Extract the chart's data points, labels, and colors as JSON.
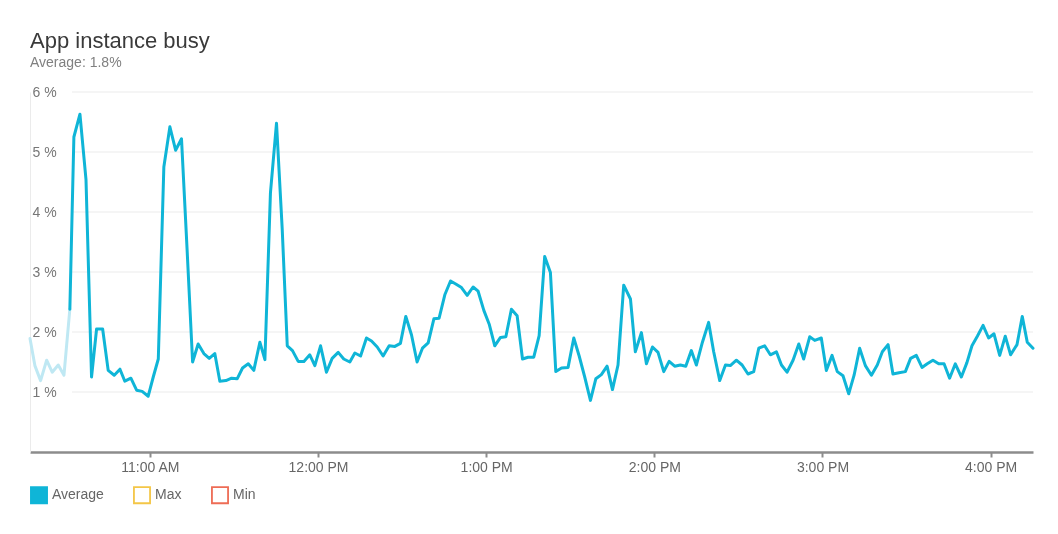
{
  "chart_data": {
    "type": "line",
    "title": "App instance busy",
    "subtitle": "Average: 1.8%",
    "xlim": [
      10.287,
      16.252
    ],
    "xticks": [
      {
        "value": 11,
        "label": "11:00 AM"
      },
      {
        "value": 12,
        "label": "12:00 PM"
      },
      {
        "value": 13,
        "label": "1:00 PM"
      },
      {
        "value": 14,
        "label": "2:00 PM"
      },
      {
        "value": 15,
        "label": "3:00 PM"
      },
      {
        "value": 16,
        "label": "4:00 PM"
      }
    ],
    "ylim": [
      0,
      6
    ],
    "yticks": [
      {
        "value": 1,
        "label": "1 %"
      },
      {
        "value": 2,
        "label": "2 %"
      },
      {
        "value": 3,
        "label": "3 %"
      },
      {
        "value": 4,
        "label": "4 %"
      },
      {
        "value": 5,
        "label": "5 %"
      },
      {
        "value": 6,
        "label": "6 %"
      }
    ],
    "grid": "y",
    "legend": "bottom left",
    "series": [
      {
        "color": "#bfe8f3",
        "x": [
          10.287,
          10.316,
          10.35,
          10.386,
          10.419,
          10.455,
          10.489,
          10.524
        ],
        "values": [
          1.89,
          1.44,
          1.19,
          1.53,
          1.33,
          1.45,
          1.28,
          2.38
        ]
      },
      {
        "name": "Average",
        "color": "#0fb5d7",
        "x": [
          10.524,
          10.548,
          10.584,
          10.62,
          10.653,
          10.683,
          10.719,
          10.752,
          10.788,
          10.822,
          10.851,
          10.887,
          10.921,
          10.954,
          10.99,
          11.02,
          11.05,
          11.083,
          11.119,
          11.153,
          11.188,
          11.222,
          11.254,
          11.287,
          11.321,
          11.353,
          11.386,
          11.416,
          11.452,
          11.486,
          11.519,
          11.551,
          11.585,
          11.618,
          11.654,
          11.684,
          11.717,
          11.753,
          11.787,
          11.817,
          11.848,
          11.882,
          11.916,
          11.951,
          11.981,
          12.015,
          12.05,
          12.084,
          12.12,
          12.153,
          12.189,
          12.219,
          12.253,
          12.288,
          12.318,
          12.352,
          12.387,
          12.423,
          12.457,
          12.49,
          12.522,
          12.556,
          12.589,
          12.621,
          12.655,
          12.689,
          12.72,
          12.754,
          12.788,
          12.819,
          12.853,
          12.887,
          12.922,
          12.952,
          12.986,
          13.018,
          13.051,
          13.085,
          13.117,
          13.15,
          13.184,
          13.216,
          13.249,
          13.283,
          13.315,
          13.348,
          13.382,
          13.414,
          13.448,
          13.487,
          13.521,
          13.553,
          13.586,
          13.62,
          13.652,
          13.685,
          13.719,
          13.751,
          13.784,
          13.818,
          13.858,
          13.887,
          13.923,
          13.953,
          13.989,
          14.022,
          14.056,
          14.088,
          14.121,
          14.155,
          14.187,
          14.22,
          14.25,
          14.286,
          14.323,
          14.353,
          14.389,
          14.423,
          14.452,
          14.488,
          14.522,
          14.557,
          14.591,
          14.621,
          14.656,
          14.69,
          14.726,
          14.756,
          14.789,
          14.825,
          14.859,
          14.888,
          14.924,
          14.954,
          14.993,
          15.023,
          15.057,
          15.088,
          15.122,
          15.156,
          15.188,
          15.221,
          15.255,
          15.291,
          15.326,
          15.356,
          15.39,
          15.419,
          15.455,
          15.493,
          15.524,
          15.558,
          15.592,
          15.623,
          15.657,
          15.691,
          15.723,
          15.756,
          15.79,
          15.826,
          15.859,
          15.889,
          15.921,
          15.955,
          15.988,
          16.02,
          16.054,
          16.087,
          16.119,
          16.157,
          16.188,
          16.218,
          16.252
        ],
        "values": [
          2.38,
          5.25,
          5.63,
          4.54,
          1.25,
          2.05,
          2.05,
          1.36,
          1.28,
          1.38,
          1.18,
          1.23,
          1.03,
          1.01,
          0.93,
          1.25,
          1.55,
          4.75,
          5.42,
          5.03,
          5.22,
          3.33,
          1.5,
          1.8,
          1.64,
          1.56,
          1.64,
          1.18,
          1.19,
          1.23,
          1.22,
          1.4,
          1.47,
          1.36,
          1.83,
          1.54,
          4.32,
          5.48,
          3.71,
          1.77,
          1.69,
          1.51,
          1.51,
          1.62,
          1.44,
          1.77,
          1.33,
          1.56,
          1.66,
          1.55,
          1.5,
          1.65,
          1.6,
          1.9,
          1.85,
          1.75,
          1.6,
          1.77,
          1.76,
          1.81,
          2.26,
          1.95,
          1.5,
          1.73,
          1.82,
          2.22,
          2.23,
          2.62,
          2.85,
          2.8,
          2.74,
          2.61,
          2.75,
          2.68,
          2.36,
          2.13,
          1.77,
          1.91,
          1.92,
          2.38,
          2.27,
          1.55,
          1.58,
          1.58,
          1.94,
          3.26,
          2.99,
          1.34,
          1.4,
          1.41,
          1.9,
          1.6,
          1.25,
          0.86,
          1.22,
          1.29,
          1.43,
          1.04,
          1.45,
          2.78,
          2.55,
          1.67,
          1.99,
          1.47,
          1.75,
          1.66,
          1.34,
          1.51,
          1.43,
          1.45,
          1.43,
          1.69,
          1.45,
          1.83,
          2.16,
          1.67,
          1.19,
          1.45,
          1.44,
          1.53,
          1.45,
          1.3,
          1.34,
          1.73,
          1.77,
          1.62,
          1.67,
          1.45,
          1.33,
          1.53,
          1.8,
          1.55,
          1.92,
          1.86,
          1.9,
          1.36,
          1.61,
          1.34,
          1.27,
          0.97,
          1.28,
          1.73,
          1.44,
          1.28,
          1.45,
          1.67,
          1.79,
          1.3,
          1.32,
          1.34,
          1.56,
          1.61,
          1.41,
          1.47,
          1.53,
          1.47,
          1.47,
          1.23,
          1.47,
          1.25,
          1.49,
          1.77,
          1.93,
          2.11,
          1.9,
          1.97,
          1.61,
          1.93,
          1.62,
          1.79,
          2.26,
          1.83,
          1.73
        ]
      },
      {
        "name": "Max",
        "color": "#f4c647"
      },
      {
        "name": "Min",
        "color": "#ee6c55"
      }
    ]
  }
}
